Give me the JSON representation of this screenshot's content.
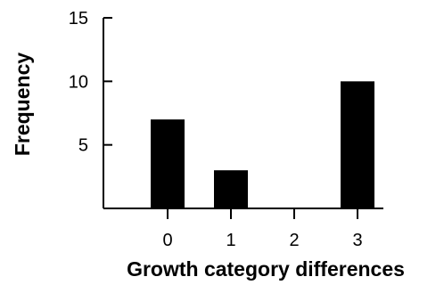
{
  "chart_data": {
    "type": "bar",
    "categories": [
      "0",
      "1",
      "2",
      "3"
    ],
    "values": [
      7,
      3,
      0,
      10
    ],
    "title": "",
    "xlabel": "Growth category differences",
    "ylabel": "Frequency",
    "ylim": [
      0,
      15
    ],
    "yticks": [
      "5",
      "10",
      "15"
    ],
    "ytick_values": [
      5,
      10,
      15
    ],
    "bar_color": "#000000",
    "grid": false
  }
}
